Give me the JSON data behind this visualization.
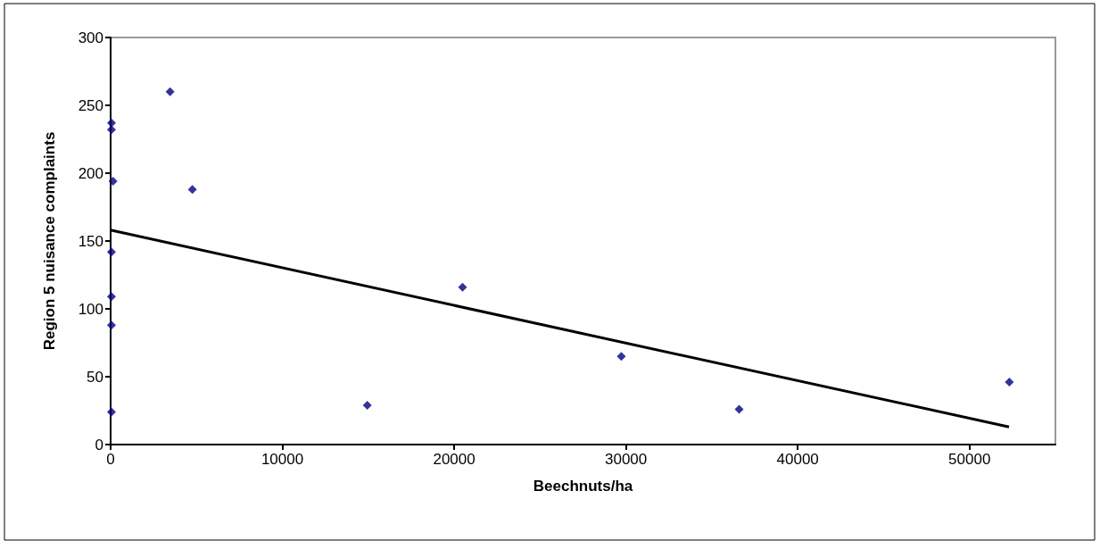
{
  "chart_data": {
    "type": "scatter",
    "xlabel": "Beechnuts/ha",
    "ylabel": "Region 5 nuisance complaints",
    "series": [
      {
        "color": "#000080",
        "marker": "diamond",
        "x": [
          3460,
          50,
          50,
          140,
          4760,
          50,
          50,
          50,
          50,
          14940,
          20490,
          29730,
          36590,
          52320
        ],
        "values": [
          260,
          237,
          232,
          194,
          188,
          142,
          109,
          88,
          24,
          29,
          116,
          65,
          26,
          46
        ]
      },
      {
        "type": "line",
        "color": "#000000",
        "marker": "none",
        "x": [
          0,
          52300
        ],
        "values": [
          158,
          13
        ]
      }
    ],
    "xlim": [
      0,
      55000
    ],
    "xticks": [
      0,
      10000,
      20000,
      30000,
      40000,
      50000
    ],
    "ylim": [
      0,
      300
    ],
    "yticks": [
      0,
      50,
      100,
      150,
      200,
      250,
      300
    ],
    "grid": false
  }
}
